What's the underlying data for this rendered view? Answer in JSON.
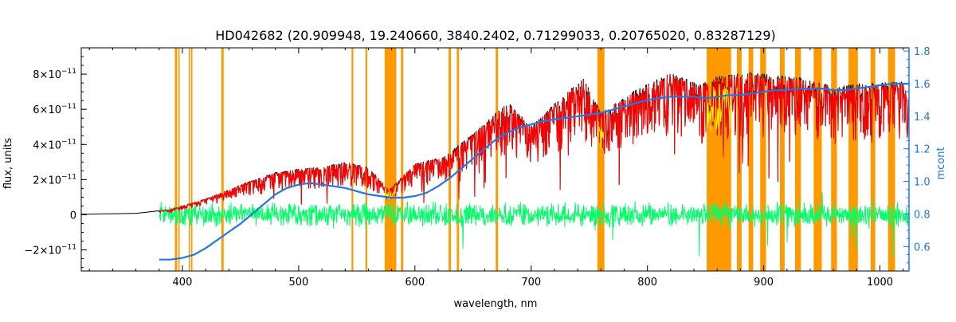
{
  "chart_data": {
    "type": "line",
    "title": "HD042682    (20.909948, 19.240660, 3840.2402, 0.71299033, 0.20765020, 0.83287129)",
    "xlabel": "wavelength, nm",
    "ylabel": "flux, units",
    "y2label": "mcont",
    "xlim": [
      313,
      1025
    ],
    "ylim": [
      -3.2e-11,
      9.5e-11
    ],
    "y2lim": [
      0.45,
      1.82
    ],
    "x_ticks": [
      400,
      500,
      600,
      700,
      800,
      900,
      1000
    ],
    "x_tick_labels": [
      "400",
      "500",
      "600",
      "700",
      "800",
      "900",
      "1000"
    ],
    "y_ticks": [
      -2e-11,
      0,
      2e-11,
      4e-11,
      6e-11,
      8e-11
    ],
    "y_tick_labels": [
      {
        "base": "−2×10",
        "exp": "−11"
      },
      {
        "base": "0",
        "exp": ""
      },
      {
        "base": "2×10",
        "exp": "−11"
      },
      {
        "base": "4×10",
        "exp": "−11"
      },
      {
        "base": "6×10",
        "exp": "−11"
      },
      {
        "base": "8×10",
        "exp": "−11"
      }
    ],
    "y2_ticks": [
      0.6,
      0.8,
      1.0,
      1.2,
      1.4,
      1.6,
      1.8
    ],
    "y2_tick_labels": [
      "0.6",
      "0.8",
      "1.0",
      "1.2",
      "1.4",
      "1.6",
      "1.8"
    ],
    "colors": {
      "observed": "#000000",
      "model": "#ff0000",
      "model_highlight": "#ffff00",
      "residual": "#00ff66",
      "continuum": "#1e78e6",
      "masked": "#ff9900",
      "right_axis": "#1e78e6"
    },
    "masked_bands": [
      [
        393.5,
        395.5
      ],
      [
        396.5,
        397.5
      ],
      [
        405.5,
        406.5
      ],
      [
        407.5,
        408.5
      ],
      [
        433.5,
        435.5
      ],
      [
        545.5,
        547
      ],
      [
        557.5,
        559
      ],
      [
        574,
        584
      ],
      [
        588,
        590
      ],
      [
        629,
        631
      ],
      [
        636,
        638
      ],
      [
        669.5,
        671.5
      ],
      [
        757,
        763
      ],
      [
        851,
        872
      ],
      [
        877,
        881
      ],
      [
        887,
        891
      ],
      [
        897,
        902
      ],
      [
        914,
        918
      ],
      [
        927,
        932
      ],
      [
        943,
        950
      ],
      [
        958,
        963
      ],
      [
        973,
        981
      ],
      [
        992,
        996
      ],
      [
        1007,
        1013
      ]
    ],
    "observed_envelope": [
      [
        313,
        3e-13
      ],
      [
        360,
        8e-13
      ],
      [
        390,
        3e-12
      ],
      [
        420,
        9e-12
      ],
      [
        450,
        1.7e-11
      ],
      [
        480,
        2.4e-11
      ],
      [
        500,
        2.6e-11
      ],
      [
        520,
        2.7e-11
      ],
      [
        540,
        3e-11
      ],
      [
        560,
        2.7e-11
      ],
      [
        578,
        1.4e-11
      ],
      [
        600,
        2.9e-11
      ],
      [
        625,
        3.3e-11
      ],
      [
        650,
        4.6e-11
      ],
      [
        680,
        6.4e-11
      ],
      [
        700,
        5e-11
      ],
      [
        720,
        6.3e-11
      ],
      [
        745,
        7.8e-11
      ],
      [
        760,
        5.8e-11
      ],
      [
        790,
        7.1e-11
      ],
      [
        820,
        8.1e-11
      ],
      [
        845,
        7.4e-11
      ],
      [
        860,
        7.9e-11
      ],
      [
        890,
        8.1e-11
      ],
      [
        930,
        7.8e-11
      ],
      [
        960,
        7.3e-11
      ],
      [
        990,
        7.5e-11
      ],
      [
        1025,
        7.6e-11
      ]
    ],
    "continuum_mcont": [
      [
        380,
        0.52
      ],
      [
        390,
        0.52
      ],
      [
        400,
        0.53
      ],
      [
        410,
        0.55
      ],
      [
        420,
        0.59
      ],
      [
        430,
        0.64
      ],
      [
        440,
        0.69
      ],
      [
        450,
        0.74
      ],
      [
        460,
        0.8
      ],
      [
        470,
        0.86
      ],
      [
        480,
        0.92
      ],
      [
        490,
        0.96
      ],
      [
        500,
        0.98
      ],
      [
        510,
        0.99
      ],
      [
        520,
        0.98
      ],
      [
        530,
        0.97
      ],
      [
        540,
        0.96
      ],
      [
        550,
        0.94
      ],
      [
        560,
        0.92
      ],
      [
        570,
        0.91
      ],
      [
        580,
        0.9
      ],
      [
        590,
        0.9
      ],
      [
        600,
        0.91
      ],
      [
        610,
        0.93
      ],
      [
        620,
        0.97
      ],
      [
        630,
        1.02
      ],
      [
        640,
        1.08
      ],
      [
        650,
        1.14
      ],
      [
        660,
        1.2
      ],
      [
        670,
        1.26
      ],
      [
        680,
        1.3
      ],
      [
        690,
        1.33
      ],
      [
        700,
        1.35
      ],
      [
        710,
        1.37
      ],
      [
        720,
        1.38
      ],
      [
        730,
        1.39
      ],
      [
        740,
        1.4
      ],
      [
        750,
        1.41
      ],
      [
        760,
        1.42
      ],
      [
        770,
        1.44
      ],
      [
        780,
        1.46
      ],
      [
        790,
        1.48
      ],
      [
        800,
        1.5
      ],
      [
        810,
        1.51
      ],
      [
        820,
        1.52
      ],
      [
        830,
        1.52
      ],
      [
        840,
        1.52
      ],
      [
        850,
        1.51
      ],
      [
        860,
        1.52
      ],
      [
        870,
        1.53
      ],
      [
        880,
        1.53
      ],
      [
        890,
        1.54
      ],
      [
        900,
        1.55
      ],
      [
        910,
        1.56
      ],
      [
        920,
        1.56
      ],
      [
        930,
        1.57
      ],
      [
        940,
        1.57
      ],
      [
        950,
        1.57
      ],
      [
        960,
        1.56
      ],
      [
        970,
        1.56
      ],
      [
        980,
        1.57
      ],
      [
        990,
        1.58
      ],
      [
        1000,
        1.59
      ],
      [
        1010,
        1.6
      ],
      [
        1025,
        1.6
      ]
    ]
  }
}
